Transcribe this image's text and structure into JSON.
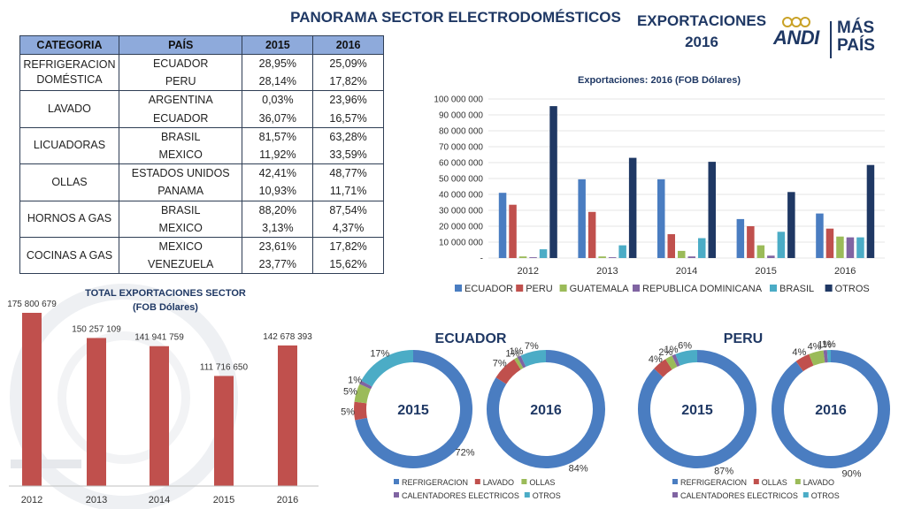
{
  "header": {
    "title": "PANORAMA SECTOR ELECTRODOMÉSTICOS",
    "exports_line1": "EXPORTACIONES",
    "exports_line2": "2016",
    "logo_left": "ANDI",
    "logo_right_line1": "MÁS",
    "logo_right_line2": "PAÍS"
  },
  "table": {
    "headers": [
      "CATEGORIA",
      "PAÍS",
      "2015",
      "2016"
    ],
    "groups": [
      {
        "category": "REFRIGERACION DOMÉSTICA",
        "rows": [
          [
            "ECUADOR",
            "28,95%",
            "25,09%"
          ],
          [
            "PERU",
            "28,14%",
            "17,82%"
          ]
        ]
      },
      {
        "category": "LAVADO",
        "rows": [
          [
            "ARGENTINA",
            "0,03%",
            "23,96%"
          ],
          [
            "ECUADOR",
            "36,07%",
            "16,57%"
          ]
        ]
      },
      {
        "category": "LICUADORAS",
        "rows": [
          [
            "BRASIL",
            "81,57%",
            "63,28%"
          ],
          [
            "MEXICO",
            "11,92%",
            "33,59%"
          ]
        ]
      },
      {
        "category": "OLLAS",
        "rows": [
          [
            "ESTADOS UNIDOS",
            "42,41%",
            "48,77%"
          ],
          [
            "PANAMA",
            "10,93%",
            "11,71%"
          ]
        ]
      },
      {
        "category": "HORNOS A GAS",
        "rows": [
          [
            "BRASIL",
            "88,20%",
            "87,54%"
          ],
          [
            "MEXICO",
            "3,13%",
            "4,37%"
          ]
        ]
      },
      {
        "category": "COCINAS A GAS",
        "rows": [
          [
            "MEXICO",
            "23,61%",
            "17,82%"
          ],
          [
            "VENEZUELA",
            "23,77%",
            "15,62%"
          ]
        ]
      }
    ]
  },
  "chart_data": [
    {
      "type": "bar",
      "title": "Exportaciones: 2016 (FOB Dólares)",
      "categories": [
        "2012",
        "2013",
        "2014",
        "2015",
        "2016"
      ],
      "ylim": [
        0,
        100000000
      ],
      "yticks": [
        "-",
        "10 000 000",
        "20 000 000",
        "30 000 000",
        "40 000 000",
        "50 000 000",
        "60 000 000",
        "70 000 000",
        "80 000 000",
        "90 000 000",
        "100 000 000"
      ],
      "legend_position": "bottom",
      "series": [
        {
          "name": "ECUADOR",
          "color": "#4a7dc1",
          "values": [
            41000000,
            49500000,
            49500000,
            24500000,
            28000000
          ]
        },
        {
          "name": "PERU",
          "color": "#c0504d",
          "values": [
            33500000,
            29000000,
            15000000,
            20000000,
            18500000
          ]
        },
        {
          "name": "GUATEMALA",
          "color": "#9bbb59",
          "values": [
            1000000,
            1000000,
            4500000,
            8000000,
            13500000
          ]
        },
        {
          "name": "REPUBLICA DOMINICANA",
          "color": "#8064a2",
          "values": [
            500000,
            500000,
            1000000,
            1500000,
            13000000
          ]
        },
        {
          "name": "BRASIL",
          "color": "#4bacc6",
          "values": [
            5500000,
            8000000,
            12500000,
            16500000,
            13000000
          ]
        },
        {
          "name": "OTROS",
          "color": "#1f3864",
          "values": [
            95500000,
            63000000,
            60500000,
            41500000,
            58500000
          ]
        }
      ]
    },
    {
      "type": "bar",
      "title": "TOTAL EXPORTACIONES SECTOR",
      "subtitle": "(FOB Dólares)",
      "categories": [
        "2012",
        "2013",
        "2014",
        "2015",
        "2016"
      ],
      "values": [
        175800679,
        150257109,
        141941759,
        111716650,
        142678393
      ],
      "labels": [
        "175 800 679",
        "150 257 109",
        "141 941 759",
        "111 716 650",
        "142 678 393"
      ],
      "color": "#c0504d",
      "ylim": [
        0,
        180000000
      ]
    },
    {
      "type": "pie",
      "group_title": "ECUADOR",
      "charts": [
        {
          "center_label": "2015",
          "values": [
            72,
            5,
            5,
            1,
            17
          ],
          "labels": [
            "72%",
            "5%",
            "5%",
            "1%",
            "17%"
          ]
        },
        {
          "center_label": "2016",
          "values": [
            84,
            7,
            1,
            1,
            7
          ],
          "labels": [
            "84%",
            "7%",
            "1%",
            "1%",
            "7%"
          ]
        }
      ],
      "legend": [
        {
          "name": "REFRIGERACION",
          "color": "#4a7dc1"
        },
        {
          "name": "LAVADO",
          "color": "#c0504d"
        },
        {
          "name": "OLLAS",
          "color": "#9bbb59"
        },
        {
          "name": "CALENTADORES ELECTRICOS",
          "color": "#8064a2"
        },
        {
          "name": "OTROS",
          "color": "#4bacc6"
        }
      ]
    },
    {
      "type": "pie",
      "group_title": "PERU",
      "charts": [
        {
          "center_label": "2015",
          "values": [
            87,
            4,
            2,
            1,
            6
          ],
          "labels": [
            "87%",
            "4%",
            "2%",
            "1%",
            "6%"
          ]
        },
        {
          "center_label": "2016",
          "values": [
            90,
            4,
            4,
            1,
            1
          ],
          "labels": [
            "90%",
            "4%",
            "4%",
            "1%",
            "1%"
          ]
        }
      ],
      "legend": [
        {
          "name": "REFRIGERACION",
          "color": "#4a7dc1"
        },
        {
          "name": "OLLAS",
          "color": "#c0504d"
        },
        {
          "name": "LAVADO",
          "color": "#9bbb59"
        },
        {
          "name": "CALENTADORES ELECTRICOS",
          "color": "#8064a2"
        },
        {
          "name": "OTROS",
          "color": "#4bacc6"
        }
      ]
    }
  ]
}
